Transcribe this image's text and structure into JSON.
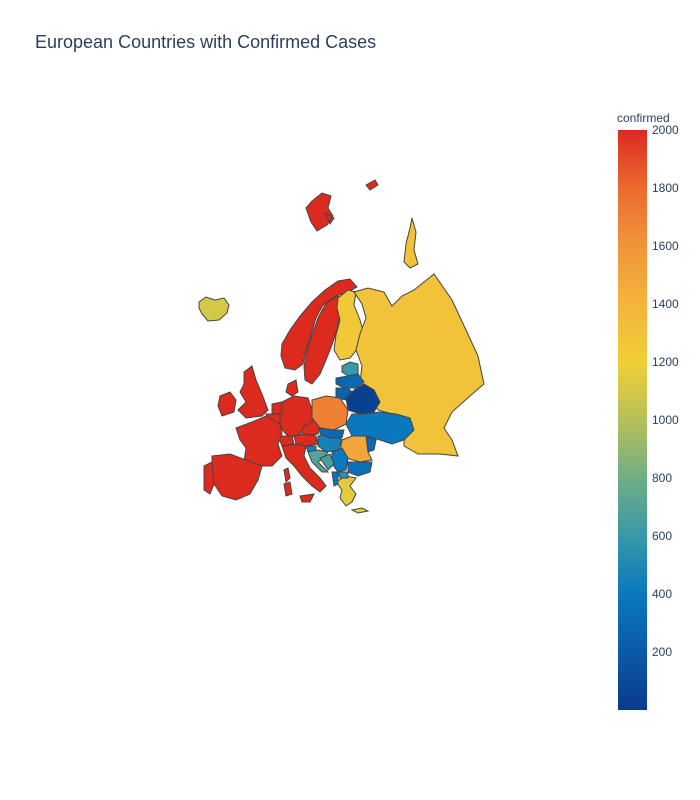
{
  "title": "European Countries with Confirmed Cases",
  "colorbar": {
    "title": "confirmed",
    "min": 0,
    "max": 2000,
    "ticks": [
      "2000",
      "1800",
      "1600",
      "1400",
      "1200",
      "1000",
      "800",
      "600",
      "400",
      "200"
    ],
    "colorscale": [
      "#0a3b8c",
      "#0b5aa8",
      "#0a78bd",
      "#3a98a8",
      "#6fae84",
      "#b7c05a",
      "#f0cf36",
      "#f4b43b",
      "#f0953a",
      "#eb6a2e",
      "#dc2a1f"
    ]
  },
  "map_data": {
    "region": "Europe",
    "countries": [
      {
        "name": "Iceland",
        "confirmed": 1100
      },
      {
        "name": "Norway",
        "confirmed": 2000
      },
      {
        "name": "Sweden",
        "confirmed": 2000
      },
      {
        "name": "Finland",
        "confirmed": 1250
      },
      {
        "name": "Svalbard",
        "confirmed": 2000
      },
      {
        "name": "Russia",
        "confirmed": 1300
      },
      {
        "name": "Estonia",
        "confirmed": 600
      },
      {
        "name": "Latvia",
        "confirmed": 300
      },
      {
        "name": "Lithuania",
        "confirmed": 250
      },
      {
        "name": "Belarus",
        "confirmed": 30
      },
      {
        "name": "Poland",
        "confirmed": 1700
      },
      {
        "name": "Ukraine",
        "confirmed": 400
      },
      {
        "name": "Moldova",
        "confirmed": 300
      },
      {
        "name": "Romania",
        "confirmed": 1500
      },
      {
        "name": "Bulgaria",
        "confirmed": 350
      },
      {
        "name": "Greece",
        "confirmed": 1150
      },
      {
        "name": "Serbia",
        "confirmed": 400
      },
      {
        "name": "Hungary",
        "confirmed": 450
      },
      {
        "name": "Slovakia",
        "confirmed": 300
      },
      {
        "name": "Czechia",
        "confirmed": 2000
      },
      {
        "name": "Austria",
        "confirmed": 2000
      },
      {
        "name": "Slovenia",
        "confirmed": 450
      },
      {
        "name": "Croatia",
        "confirmed": 700
      },
      {
        "name": "Bosnia and Herzegovina",
        "confirmed": 650
      },
      {
        "name": "North Macedonia",
        "confirmed": 550
      },
      {
        "name": "Albania",
        "confirmed": 400
      },
      {
        "name": "Germany",
        "confirmed": 2000
      },
      {
        "name": "Denmark",
        "confirmed": 2000
      },
      {
        "name": "Netherlands",
        "confirmed": 2000
      },
      {
        "name": "Belgium",
        "confirmed": 2000
      },
      {
        "name": "France",
        "confirmed": 2000
      },
      {
        "name": "Switzerland",
        "confirmed": 2000
      },
      {
        "name": "Italy",
        "confirmed": 2000
      },
      {
        "name": "Spain",
        "confirmed": 2000
      },
      {
        "name": "Portugal",
        "confirmed": 2000
      },
      {
        "name": "United Kingdom",
        "confirmed": 2000
      },
      {
        "name": "Ireland",
        "confirmed": 2000
      }
    ]
  }
}
